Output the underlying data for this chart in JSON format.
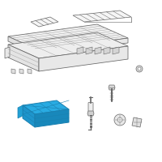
{
  "bg_color": "#ffffff",
  "lc": "#999999",
  "dc": "#666666",
  "hl_fill": "#29abe2",
  "hl_edge": "#1a80b0",
  "fig_width": 2.0,
  "fig_height": 2.0,
  "dpi": 100
}
